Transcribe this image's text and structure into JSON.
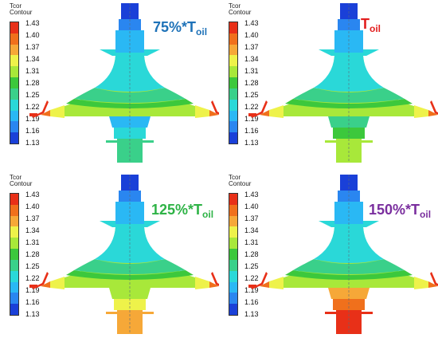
{
  "legend": {
    "title_line1": "Tcor",
    "title_line2": "Contour",
    "ticks": [
      "1.43",
      "1.40",
      "1.37",
      "1.34",
      "1.31",
      "1.28",
      "1.25",
      "1.22",
      "1.19",
      "1.16",
      "1.13"
    ]
  },
  "palette": [
    "#e83018",
    "#f0701c",
    "#f6a838",
    "#eef24a",
    "#a8e83a",
    "#3cc83c",
    "#3ad08a",
    "#2ad8d8",
    "#2ab8f4",
    "#2a86f0",
    "#1a40d8"
  ],
  "panels": [
    {
      "id": "p75",
      "label": "75%*T",
      "sub": "oil",
      "label_color": "#1e72b8",
      "level": 0.25
    },
    {
      "id": "p100",
      "label": "T",
      "sub": "oil",
      "label_color": "#e21d1d",
      "level": 0.45
    },
    {
      "id": "p125",
      "label": "125%*T",
      "sub": "oil",
      "label_color": "#2eb346",
      "level": 0.65
    },
    {
      "id": "p150",
      "label": "150%*T",
      "sub": "oil",
      "label_color": "#7a2e9e",
      "level": 0.85
    }
  ]
}
